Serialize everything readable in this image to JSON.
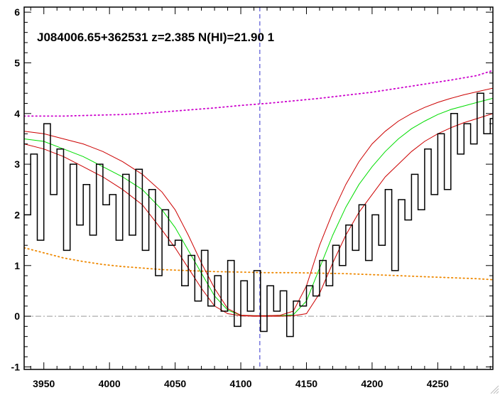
{
  "chart_data": {
    "type": "line",
    "title": "",
    "xlabel": "",
    "ylabel": "",
    "xlim": [
      3935,
      4292
    ],
    "ylim": [
      -1.05,
      6.1
    ],
    "grid": false,
    "legend": "none",
    "xticks": [
      3950,
      4000,
      4050,
      4100,
      4150,
      4200,
      4250
    ],
    "yticks": [
      -1,
      0,
      1,
      2,
      3,
      4,
      5,
      6
    ],
    "xtick_labels": [
      "3950",
      "4000",
      "4050",
      "4100",
      "4150",
      "4200",
      "4250"
    ],
    "ytick_labels": [
      "-1",
      "0",
      "1",
      "2",
      "3",
      "4",
      "5",
      "6"
    ],
    "annotation": "J084006.65+362531 z=2.385 N(HI)=21.90 1",
    "reference_line_x": 4114.5,
    "reference_line_y": 0,
    "colors": {
      "flux": "#000000",
      "model": "#00dd00",
      "model_bounds": "#cc0000",
      "continuum": "#cc00cc",
      "error": "#ee8800",
      "vline": "#3333cc",
      "zero_line": "#999999"
    },
    "series": [
      {
        "style": "steps",
        "color": "#000000",
        "x": [
          3935,
          3940,
          3945,
          3950,
          3955,
          3960,
          3965,
          3970,
          3975,
          3980,
          3985,
          3990,
          3995,
          4000,
          4005,
          4010,
          4015,
          4020,
          4025,
          4030,
          4035,
          4040,
          4045,
          4050,
          4055,
          4060,
          4065,
          4070,
          4075,
          4080,
          4085,
          4090,
          4095,
          4100,
          4105,
          4110,
          4115,
          4120,
          4125,
          4130,
          4135,
          4140,
          4145,
          4150,
          4155,
          4160,
          4165,
          4170,
          4175,
          4180,
          4185,
          4190,
          4195,
          4200,
          4205,
          4210,
          4215,
          4220,
          4225,
          4230,
          4235,
          4240,
          4245,
          4250,
          4255,
          4260,
          4265,
          4270,
          4275,
          4280,
          4285,
          4290
        ],
        "y": [
          2.0,
          3.2,
          1.5,
          3.8,
          2.4,
          3.3,
          1.3,
          3.0,
          1.8,
          2.6,
          1.6,
          3.0,
          2.2,
          2.4,
          1.5,
          2.8,
          1.6,
          2.9,
          1.3,
          2.5,
          0.8,
          2.1,
          1.4,
          1.5,
          0.6,
          1.2,
          0.3,
          1.3,
          0.2,
          0.8,
          0.1,
          1.1,
          -0.2,
          0.7,
          0.1,
          0.9,
          -0.3,
          0.6,
          0.1,
          0.5,
          -0.4,
          0.3,
          0.2,
          0.6,
          0.4,
          1.1,
          0.6,
          1.4,
          1.0,
          1.8,
          1.3,
          2.2,
          1.1,
          2.0,
          1.4,
          2.5,
          0.9,
          2.3,
          1.9,
          2.8,
          2.1,
          3.3,
          2.4,
          3.6,
          2.5,
          4.0,
          3.2,
          3.8,
          3.4,
          4.4,
          3.6,
          3.9
        ]
      },
      {
        "style": "solid",
        "color": "#00dd00",
        "x": [
          3935,
          3950,
          3965,
          3980,
          3995,
          4010,
          4025,
          4040,
          4050,
          4060,
          4070,
          4080,
          4090,
          4100,
          4110,
          4120,
          4130,
          4140,
          4150,
          4160,
          4170,
          4180,
          4190,
          4200,
          4210,
          4220,
          4230,
          4240,
          4250,
          4260,
          4270,
          4280,
          4292
        ],
        "y": [
          3.5,
          3.45,
          3.3,
          3.15,
          2.95,
          2.75,
          2.5,
          2.1,
          1.75,
          1.3,
          0.85,
          0.4,
          0.12,
          0.02,
          0.01,
          0.01,
          0.01,
          0.03,
          0.3,
          0.95,
          1.6,
          2.15,
          2.6,
          2.95,
          3.25,
          3.5,
          3.7,
          3.85,
          3.98,
          4.08,
          4.15,
          4.22,
          4.3
        ]
      },
      {
        "style": "solid",
        "color": "#cc0000",
        "x": [
          3935,
          3950,
          3965,
          3980,
          3995,
          4010,
          4025,
          4040,
          4050,
          4060,
          4070,
          4080,
          4090,
          4100,
          4110,
          4120,
          4130,
          4140,
          4150,
          4160,
          4170,
          4180,
          4190,
          4200,
          4210,
          4220,
          4230,
          4240,
          4250,
          4260,
          4270,
          4280,
          4292
        ],
        "y": [
          3.65,
          3.6,
          3.5,
          3.4,
          3.25,
          3.05,
          2.8,
          2.45,
          2.1,
          1.6,
          1.05,
          0.55,
          0.15,
          0.02,
          0.01,
          0.01,
          0.02,
          0.1,
          0.6,
          1.4,
          2.05,
          2.6,
          3.05,
          3.4,
          3.65,
          3.85,
          4.0,
          4.12,
          4.22,
          4.3,
          4.37,
          4.43,
          4.5
        ]
      },
      {
        "style": "solid",
        "color": "#cc0000",
        "x": [
          3935,
          3950,
          3965,
          3980,
          3995,
          4010,
          4025,
          4040,
          4050,
          4060,
          4070,
          4080,
          4090,
          4100,
          4110,
          4120,
          4130,
          4140,
          4150,
          4160,
          4170,
          4180,
          4190,
          4200,
          4210,
          4220,
          4230,
          4240,
          4250,
          4260,
          4270,
          4280,
          4292
        ],
        "y": [
          3.4,
          3.3,
          3.15,
          2.95,
          2.75,
          2.5,
          2.2,
          1.7,
          1.35,
          0.95,
          0.55,
          0.2,
          0.05,
          0.01,
          0.0,
          0.0,
          0.0,
          0.01,
          0.05,
          0.45,
          1.05,
          1.6,
          2.05,
          2.4,
          2.75,
          3.0,
          3.25,
          3.45,
          3.6,
          3.72,
          3.82,
          3.9,
          4.0
        ]
      },
      {
        "style": "dotted",
        "color": "#cc00cc",
        "x": [
          3935,
          3950,
          3965,
          3980,
          3995,
          4010,
          4025,
          4040,
          4060,
          4080,
          4100,
          4120,
          4140,
          4160,
          4180,
          4200,
          4220,
          4240,
          4260,
          4280,
          4292
        ],
        "y": [
          3.95,
          3.95,
          3.95,
          3.96,
          3.97,
          3.98,
          4.0,
          4.03,
          4.07,
          4.11,
          4.16,
          4.2,
          4.25,
          4.3,
          4.36,
          4.42,
          4.5,
          4.58,
          4.66,
          4.75,
          4.85
        ]
      },
      {
        "style": "dotted",
        "color": "#ee8800",
        "x": [
          3935,
          3950,
          3965,
          3980,
          3995,
          4010,
          4025,
          4040,
          4060,
          4080,
          4100,
          4120,
          4140,
          4160,
          4180,
          4200,
          4220,
          4240,
          4260,
          4280,
          4292
        ],
        "y": [
          1.35,
          1.25,
          1.15,
          1.08,
          1.02,
          0.98,
          0.95,
          0.92,
          0.9,
          0.88,
          0.87,
          0.86,
          0.86,
          0.85,
          0.84,
          0.82,
          0.8,
          0.78,
          0.76,
          0.74,
          0.72
        ]
      }
    ]
  }
}
